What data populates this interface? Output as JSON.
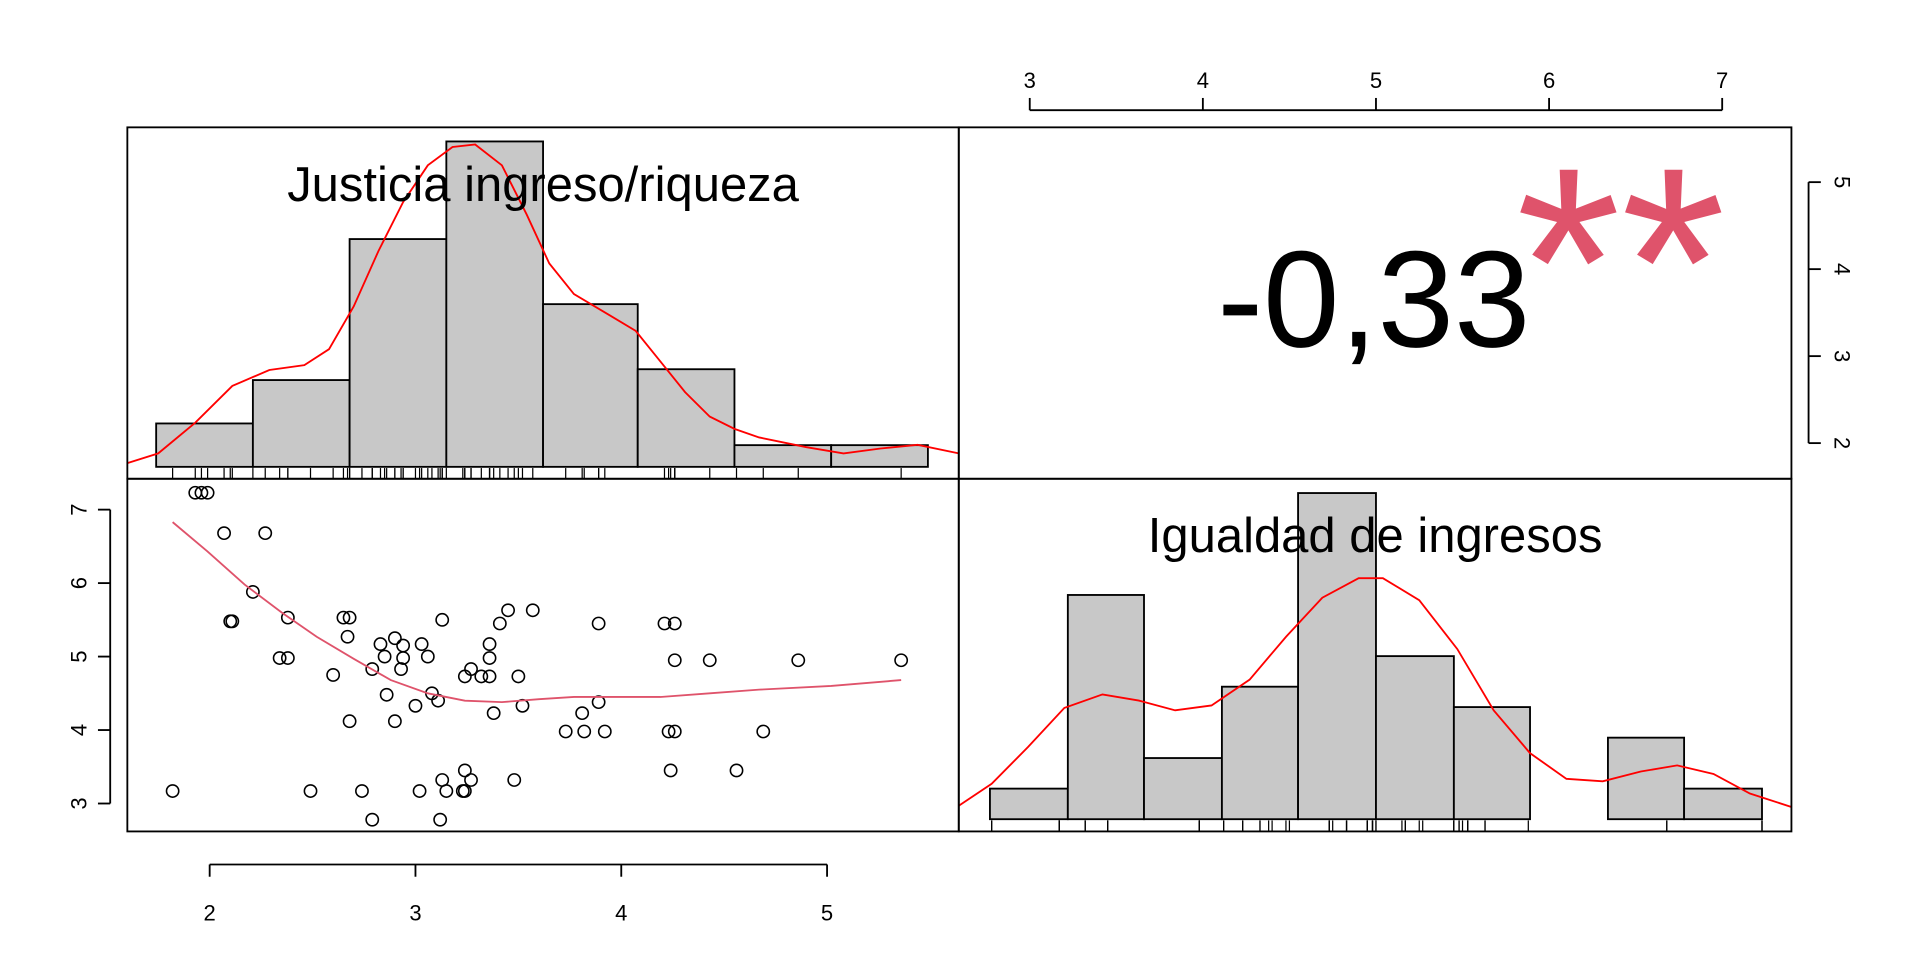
{
  "chart_data": [
    {
      "type": "histogram",
      "title": "Justicia ingreso/riqueza",
      "bins": [
        1.74,
        2.21,
        2.68,
        3.15,
        3.62,
        4.08,
        4.55,
        5.02,
        5.49
      ],
      "values": [
        4,
        8,
        21,
        30,
        15,
        9,
        2,
        2
      ],
      "color": "#c8c8c8",
      "xlim": [
        1.6,
        5.64
      ],
      "ylim": [
        -1.1,
        31.3
      ],
      "rug": true,
      "density": {
        "color": "#ff0000",
        "x": [
          1.6,
          1.75,
          1.93,
          2.11,
          2.29,
          2.46,
          2.58,
          2.7,
          2.82,
          2.94,
          3.06,
          3.18,
          3.29,
          3.42,
          3.54,
          3.65,
          3.77,
          3.95,
          4.07,
          4.19,
          4.31,
          4.43,
          4.55,
          4.67,
          4.9,
          5.08,
          5.26,
          5.44,
          5.64
        ],
        "y": [
          0.34,
          1.24,
          4.07,
          7.46,
          8.93,
          9.38,
          10.85,
          14.8,
          19.89,
          24.41,
          27.8,
          29.49,
          29.72,
          27.8,
          23.28,
          18.76,
          15.93,
          13.9,
          12.54,
          9.72,
          6.89,
          4.63,
          3.5,
          2.71,
          1.81,
          1.24,
          1.69,
          2.03,
          1.24
        ]
      }
    },
    {
      "type": "correlation",
      "values": [
        -0.33
      ],
      "value_labels": [
        "-0,33"
      ],
      "significance": "**",
      "significance_color": "#df536b",
      "xlim": [
        2.59,
        7.4
      ],
      "xticks": [
        3,
        4,
        5,
        6,
        7
      ],
      "ylim": [
        1.59,
        5.63
      ],
      "yticks": [
        2,
        3,
        4,
        5
      ]
    },
    {
      "type": "scatter",
      "x": [
        1.93,
        1.96,
        1.99,
        2.07,
        2.27,
        2.21,
        2.1,
        2.11,
        2.38,
        2.34,
        2.38,
        2.6,
        2.65,
        2.68,
        2.67,
        2.68,
        1.82,
        2.49,
        2.74,
        2.79,
        2.79,
        2.83,
        2.85,
        2.86,
        2.9,
        2.9,
        2.94,
        2.94,
        2.93,
        3.0,
        3.03,
        3.06,
        3.08,
        3.11,
        3.13,
        3.02,
        3.13,
        3.15,
        3.12,
        3.23,
        3.24,
        3.24,
        3.24,
        3.27,
        3.27,
        3.32,
        3.36,
        3.36,
        3.36,
        3.38,
        3.41,
        3.45,
        3.48,
        3.5,
        3.52,
        3.57,
        3.73,
        3.81,
        3.82,
        3.89,
        3.89,
        3.92,
        4.21,
        4.26,
        4.24,
        4.23,
        4.26,
        4.26,
        4.43,
        4.56,
        4.69,
        4.86,
        5.36
      ],
      "y": [
        7.23,
        7.23,
        7.23,
        6.68,
        6.68,
        5.88,
        5.48,
        5.48,
        5.53,
        4.98,
        4.98,
        4.75,
        5.53,
        5.53,
        5.27,
        4.12,
        3.17,
        3.17,
        3.17,
        2.78,
        4.83,
        5.17,
        5.0,
        4.48,
        5.25,
        4.12,
        5.15,
        4.98,
        4.83,
        4.33,
        5.17,
        5.0,
        4.5,
        4.4,
        5.5,
        3.17,
        3.32,
        3.17,
        2.78,
        3.17,
        3.17,
        3.45,
        4.73,
        4.83,
        3.32,
        4.73,
        4.73,
        5.17,
        4.98,
        4.23,
        5.45,
        5.63,
        3.32,
        4.73,
        4.33,
        5.63,
        3.98,
        4.23,
        3.98,
        4.38,
        5.45,
        3.98,
        5.45,
        5.45,
        3.45,
        3.98,
        3.98,
        4.95,
        4.95,
        3.45,
        3.98,
        4.95,
        4.95
      ],
      "fit": {
        "color": "#df536b",
        "x": [
          1.82,
          1.99,
          2.17,
          2.35,
          2.52,
          2.7,
          2.88,
          3.06,
          3.24,
          3.42,
          3.6,
          3.77,
          3.95,
          4.19,
          4.43,
          4.67,
          5.02,
          5.36
        ],
        "y": [
          6.83,
          6.43,
          5.98,
          5.6,
          5.27,
          4.97,
          4.68,
          4.5,
          4.4,
          4.38,
          4.42,
          4.45,
          4.45,
          4.45,
          4.5,
          4.55,
          4.6,
          4.68
        ]
      },
      "xlim": [
        1.6,
        5.64
      ],
      "xticks": [
        2,
        3,
        4,
        5
      ],
      "ylim": [
        2.62,
        7.42
      ],
      "yticks": [
        3,
        4,
        5,
        6,
        7
      ]
    },
    {
      "type": "histogram",
      "title": "Igualdad de ingresos",
      "bins": [
        2.77,
        3.22,
        3.66,
        4.11,
        4.55,
        5.0,
        5.45,
        5.89,
        6.34,
        6.78,
        7.23
      ],
      "values": [
        3,
        22,
        6,
        13,
        32,
        16,
        11,
        0,
        8,
        3
      ],
      "color": "#c8c8c8",
      "xlim": [
        2.59,
        7.4
      ],
      "ylim": [
        -1.2,
        33.4
      ],
      "rug": true,
      "density": {
        "color": "#ff0000",
        "x": [
          2.59,
          2.78,
          2.99,
          3.2,
          3.42,
          3.63,
          3.84,
          4.05,
          4.27,
          4.48,
          4.69,
          4.9,
          5.04,
          5.25,
          5.47,
          5.68,
          5.89,
          6.1,
          6.31,
          6.53,
          6.74,
          6.95,
          7.16,
          7.4
        ],
        "y": [
          1.32,
          3.48,
          7.08,
          10.92,
          12.24,
          11.64,
          10.68,
          11.16,
          13.69,
          17.89,
          21.73,
          23.65,
          23.65,
          21.49,
          16.69,
          10.68,
          6.48,
          3.96,
          3.72,
          4.68,
          5.28,
          4.44,
          2.52,
          1.2
        ]
      }
    }
  ]
}
